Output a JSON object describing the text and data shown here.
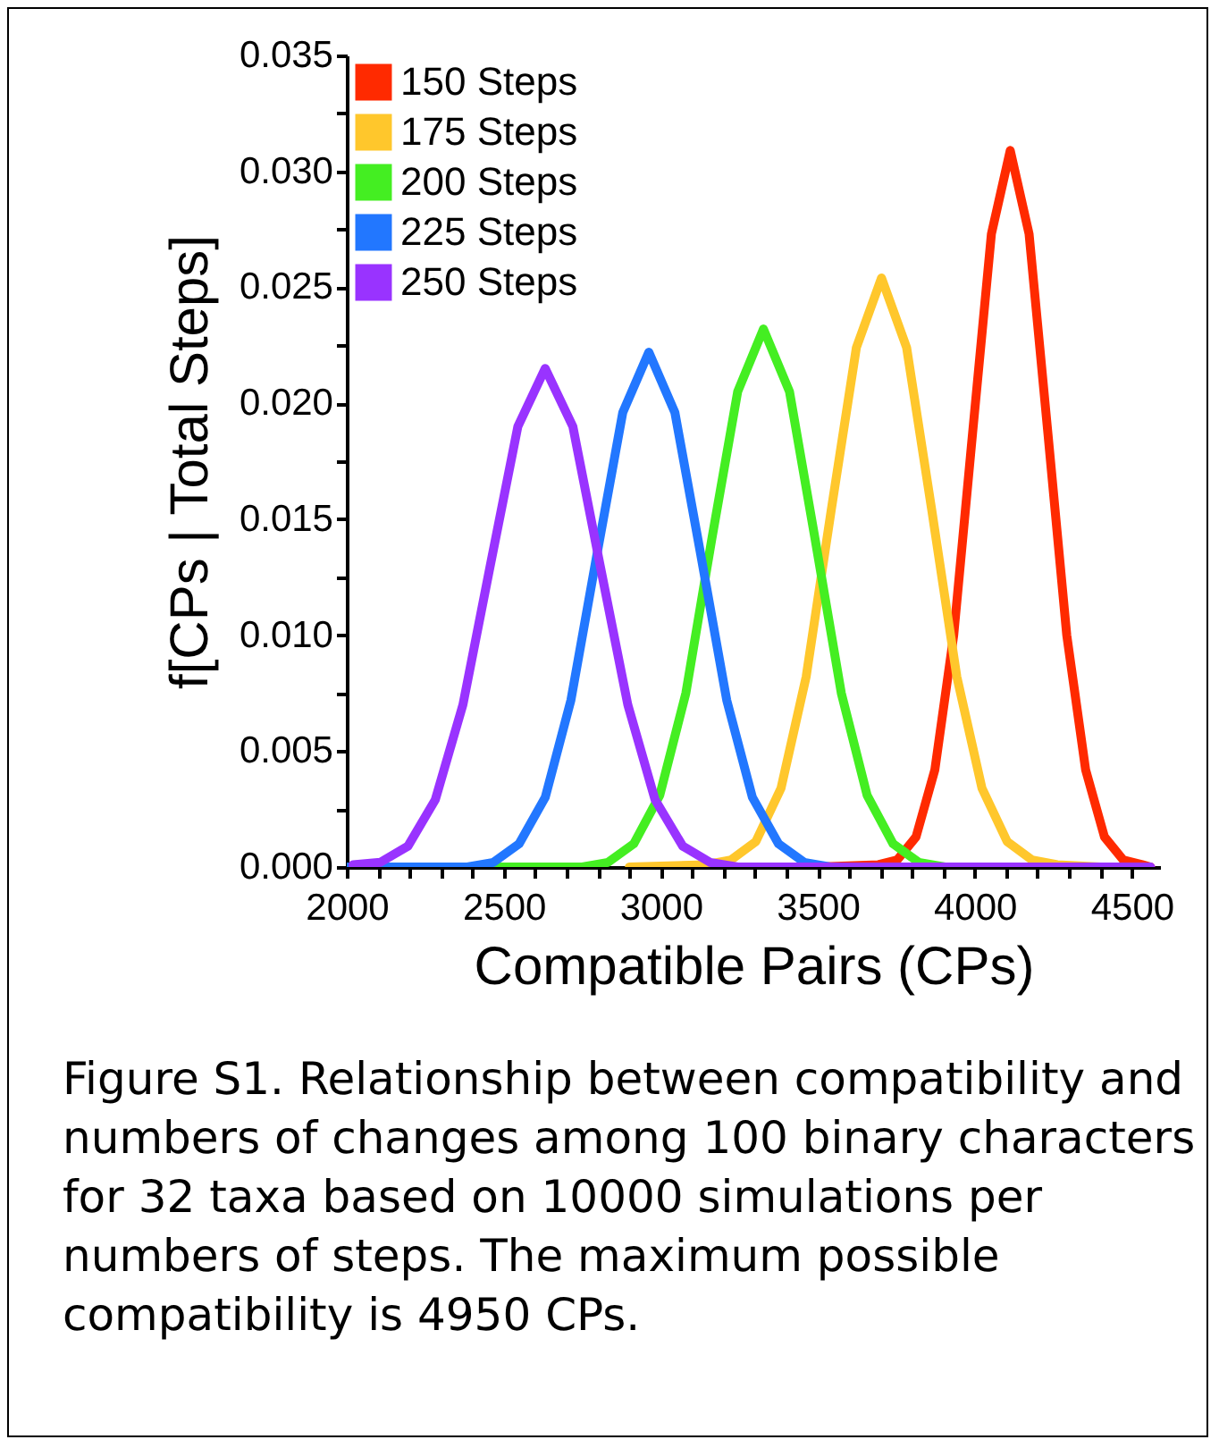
{
  "chart_data": {
    "type": "line",
    "xlabel": "Compatible Pairs (CPs)",
    "ylabel": "f[CPs | Total Steps]",
    "xlim": [
      2000,
      4590
    ],
    "ylim": [
      0,
      0.035
    ],
    "xticks": [
      2000,
      {
        "value": 2100,
        "label": null
      },
      {
        "value": 2200,
        "label": null
      },
      {
        "value": 2300,
        "label": null
      },
      {
        "value": 2400,
        "label": null
      },
      2500,
      {
        "value": 2600,
        "label": null
      },
      {
        "value": 2700,
        "label": null
      },
      {
        "value": 2800,
        "label": null
      },
      {
        "value": 2900,
        "label": null
      },
      3000,
      {
        "value": 3100,
        "label": null
      },
      {
        "value": 3200,
        "label": null
      },
      {
        "value": 3300,
        "label": null
      },
      {
        "value": 3400,
        "label": null
      },
      3500,
      {
        "value": 3600,
        "label": null
      },
      {
        "value": 3700,
        "label": null
      },
      {
        "value": 3800,
        "label": null
      },
      {
        "value": 3900,
        "label": null
      },
      4000,
      {
        "value": 4100,
        "label": null
      },
      {
        "value": 4200,
        "label": null
      },
      {
        "value": 4300,
        "label": null
      },
      {
        "value": 4400,
        "label": null
      },
      4500
    ],
    "yticks": [
      {
        "value": 0,
        "label": "0.000"
      },
      {
        "value": 0.0025,
        "label": null
      },
      0.005,
      {
        "value": 0.0075,
        "label": null
      },
      {
        "value": 0.01,
        "label": "0.010"
      },
      {
        "value": 0.0125,
        "label": null
      },
      0.015,
      {
        "value": 0.0175,
        "label": null
      },
      {
        "value": 0.02,
        "label": "0.020"
      },
      {
        "value": 0.0225,
        "label": null
      },
      0.025,
      {
        "value": 0.0275,
        "label": null
      },
      {
        "value": 0.03,
        "label": "0.030"
      },
      {
        "value": 0.0325,
        "label": null
      },
      0.035
    ],
    "grid": false,
    "legend": "top left",
    "marker": "none",
    "line_style": "solid",
    "series": [
      {
        "name": "150 Steps",
        "color": "#ff2a00",
        "x": [
          3500,
          3693,
          3753,
          3813,
          3873,
          3933,
          3993,
          4053,
          4113,
          4173,
          4233,
          4293,
          4353,
          4413,
          4473,
          4533,
          4560
        ],
        "values": [
          0,
          0.0001,
          0.0003,
          0.0013,
          0.0042,
          0.01,
          0.0187,
          0.0273,
          0.0309,
          0.0273,
          0.0187,
          0.01,
          0.0042,
          0.0013,
          0.0003,
          0.0001,
          0
        ]
      },
      {
        "name": "175 Steps",
        "color": "#ffc72c",
        "x": [
          2900,
          3143,
          3223,
          3303,
          3383,
          3463,
          3543,
          3623,
          3703,
          3783,
          3863,
          3943,
          4023,
          4103,
          4183,
          4263,
          4400
        ],
        "values": [
          0,
          0.0001,
          0.0003,
          0.0011,
          0.0034,
          0.0082,
          0.0154,
          0.0224,
          0.0254,
          0.0224,
          0.0154,
          0.0082,
          0.0034,
          0.0011,
          0.0003,
          0.0001,
          0
        ]
      },
      {
        "name": "200 Steps",
        "color": "#44ee22",
        "x": [
          2300,
          2750,
          2832,
          2914,
          2997,
          3080,
          3162,
          3245,
          3327,
          3410,
          3492,
          3575,
          3657,
          3740,
          3822,
          3905,
          4200
        ],
        "values": [
          0,
          0,
          0.0002,
          0.001,
          0.0031,
          0.0075,
          0.0141,
          0.0205,
          0.0232,
          0.0205,
          0.0141,
          0.0075,
          0.0031,
          0.001,
          0.0002,
          0,
          0
        ]
      },
      {
        "name": "225 Steps",
        "color": "#2277ff",
        "x": [
          2000,
          2384,
          2467,
          2549,
          2632,
          2714,
          2797,
          2879,
          2962,
          3045,
          3127,
          3210,
          3292,
          3375,
          3457,
          3540,
          4000
        ],
        "values": [
          0,
          0,
          0.0002,
          0.001,
          0.003,
          0.0072,
          0.0135,
          0.0196,
          0.0222,
          0.0196,
          0.0135,
          0.0072,
          0.003,
          0.001,
          0.0002,
          0,
          0
        ]
      },
      {
        "name": "250 Steps",
        "color": "#9933ff",
        "x": [
          2020,
          2107,
          2195,
          2282,
          2370,
          2457,
          2545,
          2632,
          2720,
          2807,
          2895,
          2982,
          3070,
          3157,
          3245,
          3500,
          4000,
          4560
        ],
        "values": [
          0.0001,
          0.0002,
          0.0009,
          0.0029,
          0.007,
          0.013,
          0.019,
          0.0215,
          0.019,
          0.013,
          0.007,
          0.0029,
          0.0009,
          0.0002,
          0,
          0,
          0,
          0
        ]
      }
    ],
    "annotations": [
      "Figure S1.  Relationship between compatibility and numbers of changes among 100 binary characters for 32 taxa based on 10000 simulations per numbers of steps. The maximum possible compatibility is 4950 CPs."
    ]
  }
}
